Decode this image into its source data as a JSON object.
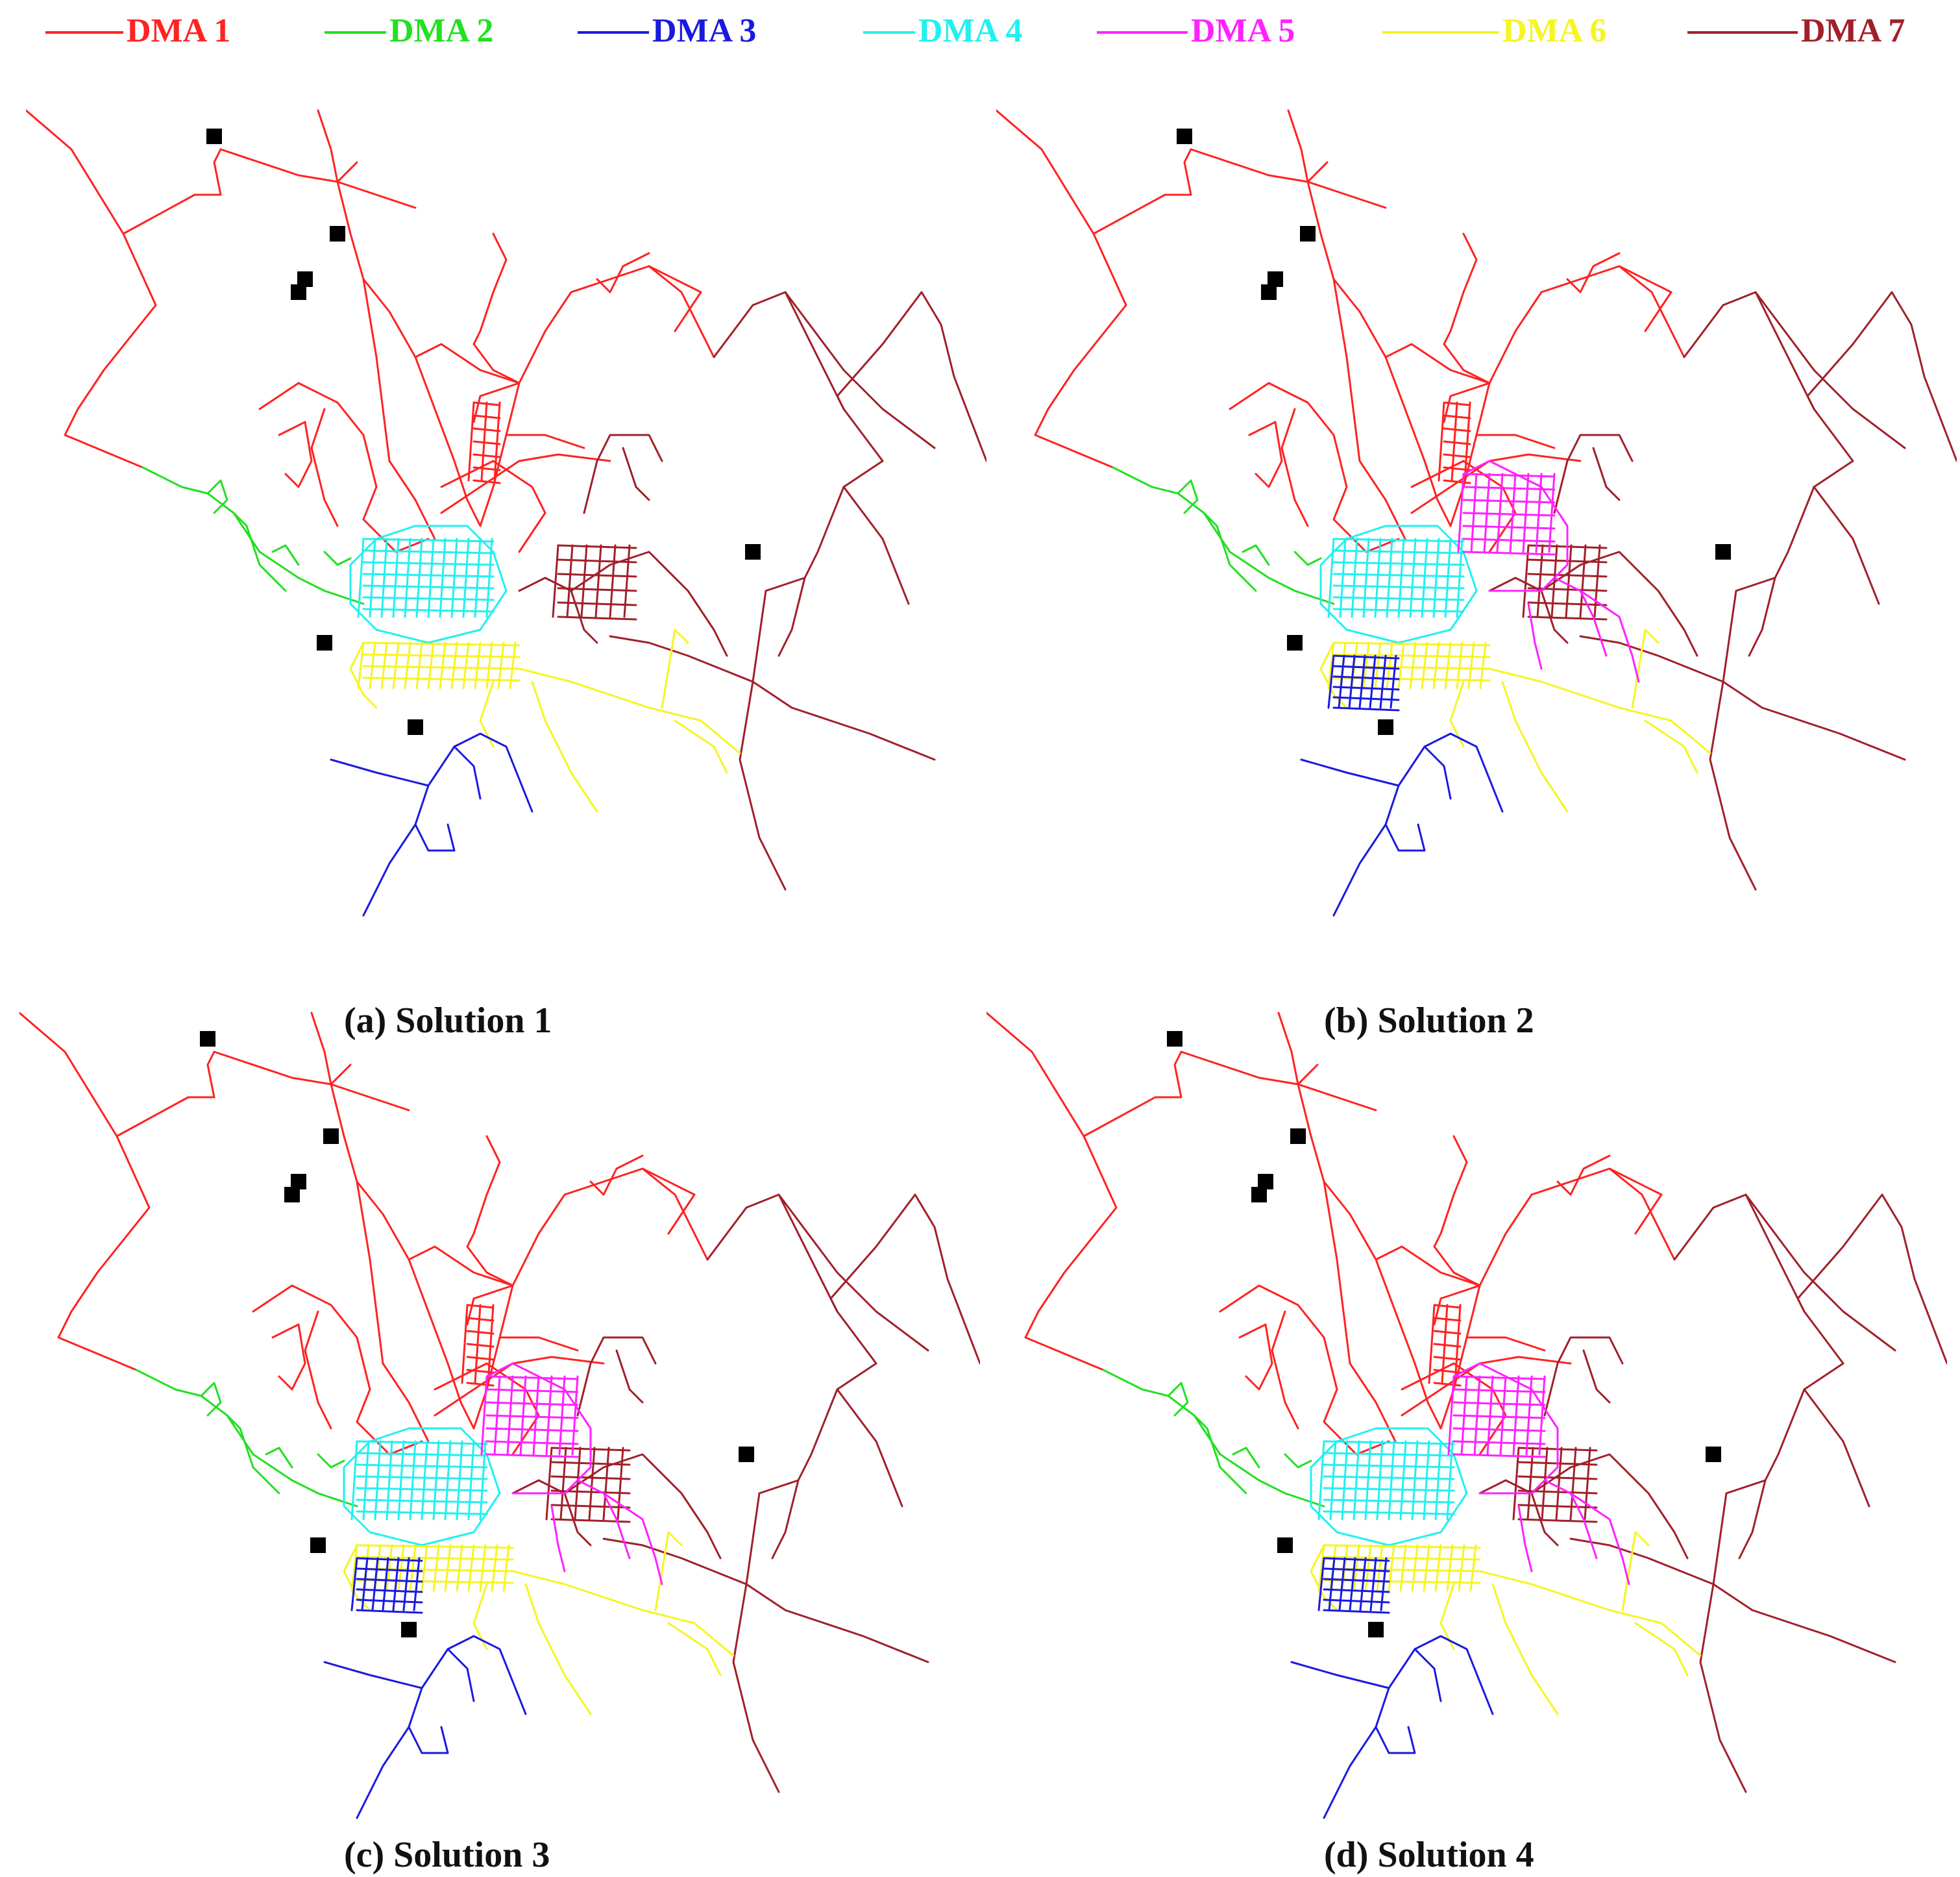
{
  "legend": [
    {
      "label": "DMA 1",
      "color": "#ff2222"
    },
    {
      "label": "DMA 2",
      "color": "#22e022"
    },
    {
      "label": "DMA 3",
      "color": "#1a1adf"
    },
    {
      "label": "DMA 4",
      "color": "#22f0f0"
    },
    {
      "label": "DMA 5",
      "color": "#ff22ff"
    },
    {
      "label": "DMA 6",
      "color": "#f5f522"
    },
    {
      "label": "DMA 7",
      "color": "#a0202a"
    }
  ],
  "panels": [
    {
      "label": "(a)   Solution 1",
      "dma5_present": false
    },
    {
      "label": "(b) Solution 2",
      "dma5_present": true
    },
    {
      "label": "(c)   Solution 3",
      "dma5_present": true
    },
    {
      "label": "(d) Solution 4",
      "dma5_present": true
    }
  ]
}
